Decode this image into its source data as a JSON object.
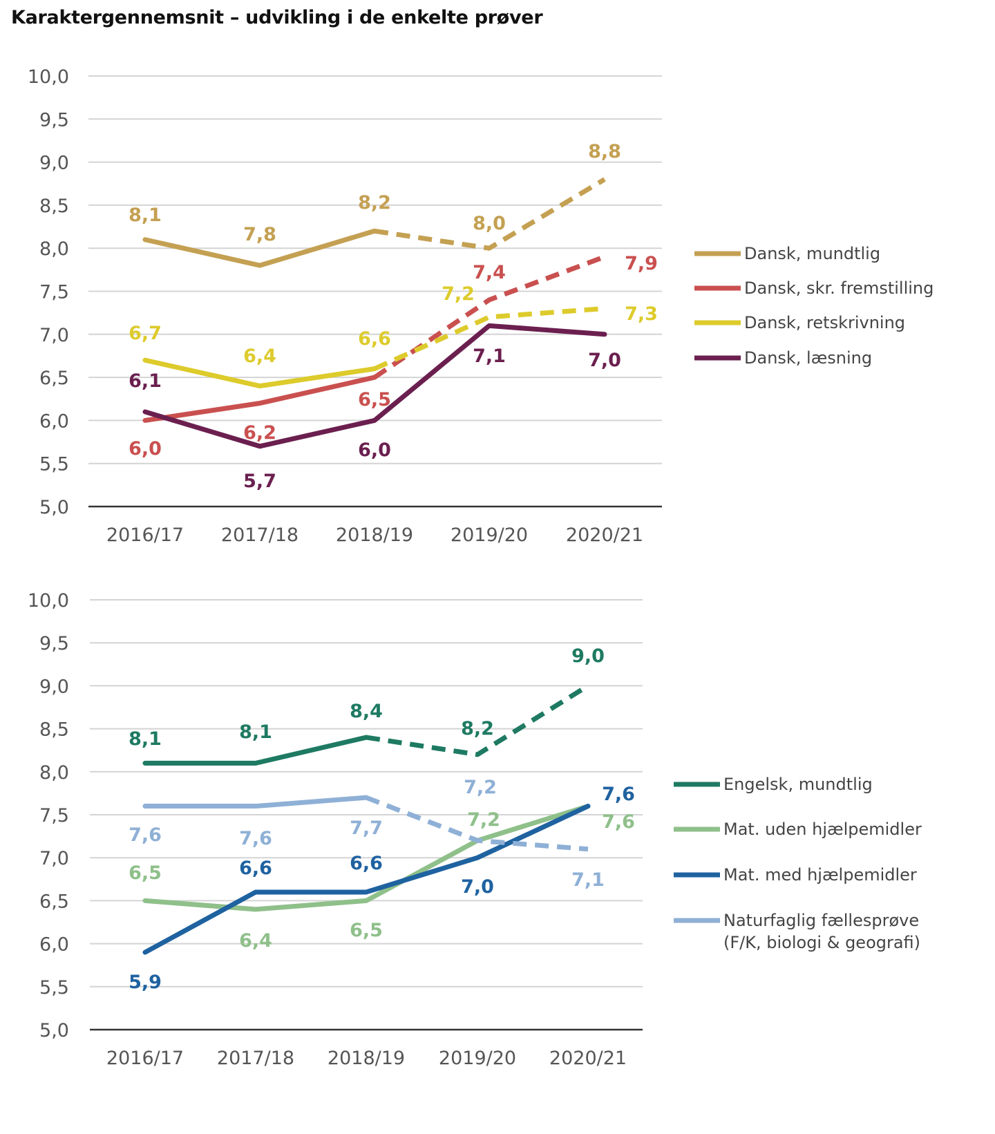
{
  "title": "Karaktergennemsnit – udvikling i de enkelte prøver",
  "chart_data": [
    {
      "type": "line",
      "categories": [
        "2016/17",
        "2017/18",
        "2018/19",
        "2019/20",
        "2020/21"
      ],
      "ylim": [
        5.0,
        10.0
      ],
      "yticks": [
        "5,0",
        "5,5",
        "6,0",
        "6,5",
        "7,0",
        "7,5",
        "8,0",
        "8,5",
        "9,0",
        "9,5",
        "10,0"
      ],
      "grid": true,
      "legend": "right",
      "series": [
        {
          "name": "Dansk, mundtlig",
          "color": "#c4a052",
          "values": [
            8.1,
            7.8,
            8.2,
            8.0,
            8.8
          ],
          "labels": [
            "8,1",
            "7,8",
            "8,2",
            "8,0",
            "8,8"
          ],
          "dashed_from": "2018/19"
        },
        {
          "name": "Dansk, skr. fremstilling",
          "color": "#c9504f",
          "values": [
            6.0,
            6.2,
            6.5,
            7.4,
            7.9
          ],
          "labels": [
            "6,0",
            "6,2",
            "6,5",
            "7,4",
            "7,9"
          ],
          "dashed_from": "2018/19"
        },
        {
          "name": "Dansk, retskrivning",
          "color": "#ddcb2c",
          "values": [
            6.7,
            6.4,
            6.6,
            7.2,
            7.3
          ],
          "labels": [
            "6,7",
            "6,4",
            "6,6",
            "7,2",
            "7,3"
          ],
          "dashed_from": "2018/19"
        },
        {
          "name": "Dansk, læsning",
          "color": "#6b1f4f",
          "values": [
            6.1,
            5.7,
            6.0,
            7.1,
            7.0
          ],
          "labels": [
            "6,1",
            "5,7",
            "6,0",
            "7,1",
            "7,0"
          ],
          "dashed_from": null
        }
      ]
    },
    {
      "type": "line",
      "categories": [
        "2016/17",
        "2017/18",
        "2018/19",
        "2019/20",
        "2020/21"
      ],
      "ylim": [
        5.0,
        10.0
      ],
      "yticks": [
        "5,0",
        "5,5",
        "6,0",
        "6,5",
        "7,0",
        "7,5",
        "8,0",
        "8,5",
        "9,0",
        "9,5",
        "10,0"
      ],
      "grid": true,
      "legend": "right",
      "series": [
        {
          "name": "Engelsk, mundtlig",
          "color": "#1e7a62",
          "values": [
            8.1,
            8.1,
            8.4,
            8.2,
            9.0
          ],
          "labels": [
            "8,1",
            "8,1",
            "8,4",
            "8,2",
            "9,0"
          ],
          "dashed_from": "2018/19"
        },
        {
          "name": "Mat. uden hjælpemidler",
          "color": "#8fc08a",
          "values": [
            6.5,
            6.4,
            6.5,
            7.2,
            7.6
          ],
          "labels": [
            "6,5",
            "6,4",
            "6,5",
            "7,2",
            "7,6"
          ],
          "dashed_from": null
        },
        {
          "name": "Mat. med hjælpemidler",
          "color": "#1f62a0",
          "values": [
            5.9,
            6.6,
            6.6,
            7.0,
            7.6
          ],
          "labels": [
            "5,9",
            "6,6",
            "6,6",
            "7,0",
            "7,6"
          ],
          "dashed_from": null
        },
        {
          "name": "Naturfaglig fællesprøve",
          "name_line2": "(F/K, biologi & geografi)",
          "color": "#8fb0d6",
          "values": [
            7.6,
            7.6,
            7.7,
            7.2,
            7.1
          ],
          "labels": [
            "7,6",
            "7,6",
            "7,7",
            "7,2",
            "7,1"
          ],
          "dashed_from": "2018/19"
        }
      ]
    }
  ]
}
